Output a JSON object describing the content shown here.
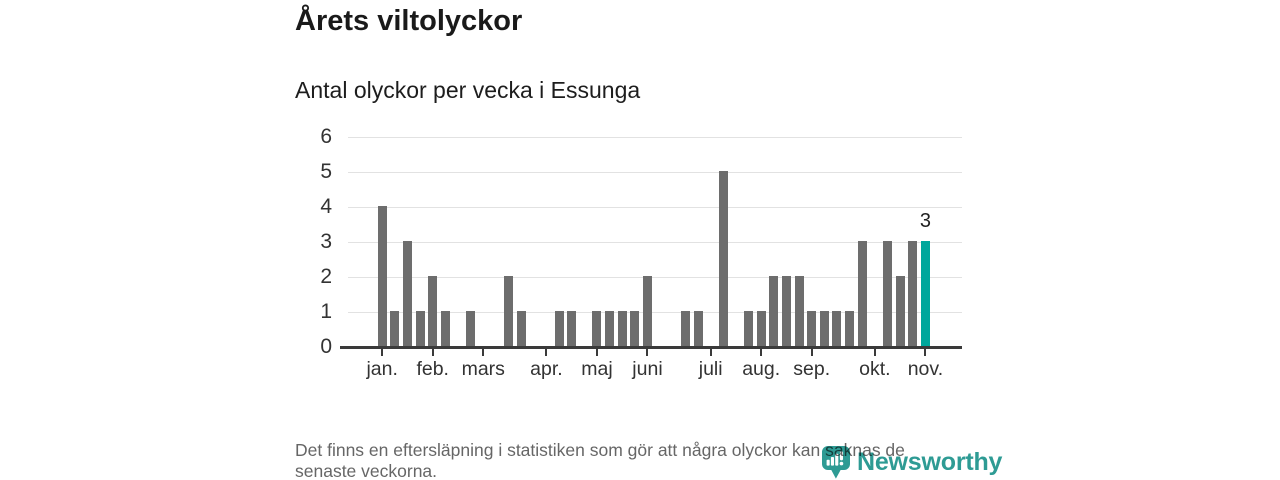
{
  "header": {
    "title": "Årets viltolyckor",
    "subtitle": "Antal olyckor per vecka i Essunga"
  },
  "chart_data": {
    "type": "bar",
    "title": "Årets viltolyckor",
    "subtitle": "Antal olyckor per vecka i Essunga",
    "ylabel": "",
    "xlabel": "",
    "ylim": [
      0,
      6
    ],
    "yticks": [
      0,
      1,
      2,
      3,
      4,
      5,
      6
    ],
    "grid": true,
    "values": [
      0,
      0,
      0,
      4,
      1,
      3,
      1,
      2,
      1,
      0,
      1,
      0,
      0,
      2,
      1,
      0,
      0,
      1,
      1,
      0,
      1,
      1,
      1,
      1,
      2,
      0,
      0,
      1,
      1,
      0,
      5,
      0,
      1,
      1,
      2,
      2,
      2,
      1,
      1,
      1,
      1,
      3,
      0,
      3,
      2,
      3,
      3
    ],
    "month_ticks": [
      {
        "label": "jan.",
        "slot": 3
      },
      {
        "label": "feb.",
        "slot": 7
      },
      {
        "label": "mars",
        "slot": 11
      },
      {
        "label": "apr.",
        "slot": 16
      },
      {
        "label": "maj",
        "slot": 20
      },
      {
        "label": "juni",
        "slot": 24
      },
      {
        "label": "juli",
        "slot": 29
      },
      {
        "label": "aug.",
        "slot": 33
      },
      {
        "label": "sep.",
        "slot": 37
      },
      {
        "label": "okt.",
        "slot": 42
      },
      {
        "label": "nov.",
        "slot": 46
      }
    ],
    "highlight_slot": 46,
    "bar_value_label": {
      "text": "3",
      "slot": 46
    },
    "bar_color": "#6d6d6d",
    "highlight_color": "#00a79c"
  },
  "footer": {
    "lines": [
      "Det finns en eftersläpning i statistiken som gör att några olyckor kan saknas de",
      "senaste veckorna."
    ]
  },
  "logo": {
    "name": "Newsworthy",
    "color": "#2e9b94"
  }
}
